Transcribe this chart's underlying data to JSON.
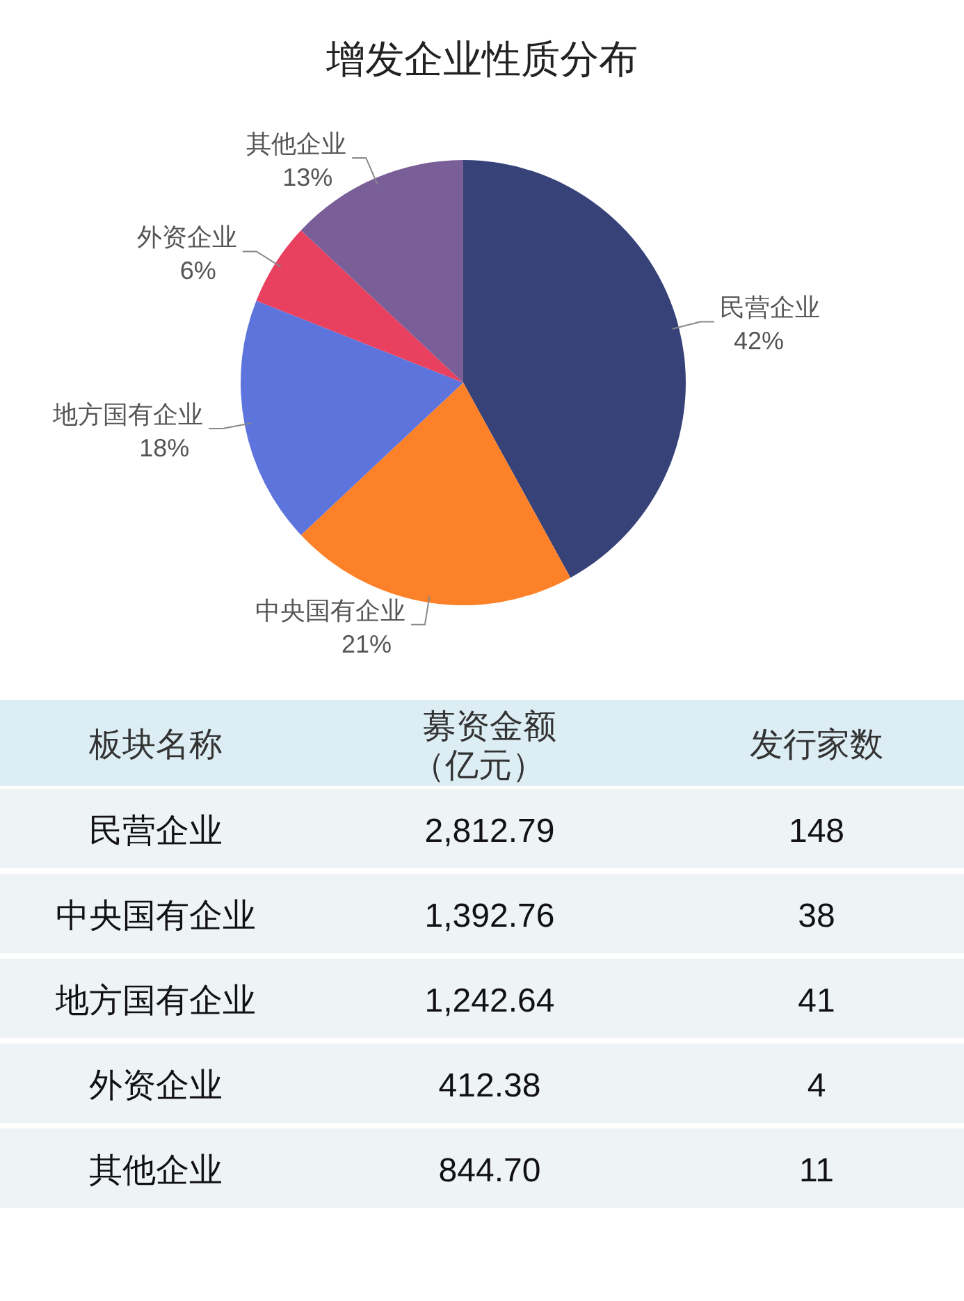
{
  "chart_data": [
    {
      "type": "pie",
      "title": "增发企业性质分布",
      "categories": [
        "民营企业",
        "中央国有企业",
        "地方国有企业",
        "外资企业",
        "其他企业"
      ],
      "values": [
        42,
        21,
        18,
        6,
        13
      ],
      "value_labels": [
        "42%",
        "21%",
        "18%",
        "6%",
        "13%"
      ],
      "colors": [
        "#374278",
        "#fd8128",
        "#5e74dd",
        "#e8405e",
        "#7a5e98"
      ]
    },
    {
      "type": "other",
      "xlabel": "板块名称",
      "categories": [
        "民营企业",
        "中央国有企业",
        "地方国有企业",
        "外资企业",
        "其他企业"
      ],
      "series": [
        {
          "name": "募资金额（亿元）",
          "values": [
            2812.79,
            1392.76,
            1242.64,
            412.38,
            844.7
          ],
          "value_labels": [
            "2,812.79",
            "1,392.76",
            "1,242.64",
            "412.38",
            "844.70"
          ]
        },
        {
          "name": "发行家数",
          "values": [
            148,
            38,
            41,
            4,
            11
          ],
          "value_labels": [
            "148",
            "38",
            "41",
            "4",
            "11"
          ]
        }
      ]
    }
  ]
}
